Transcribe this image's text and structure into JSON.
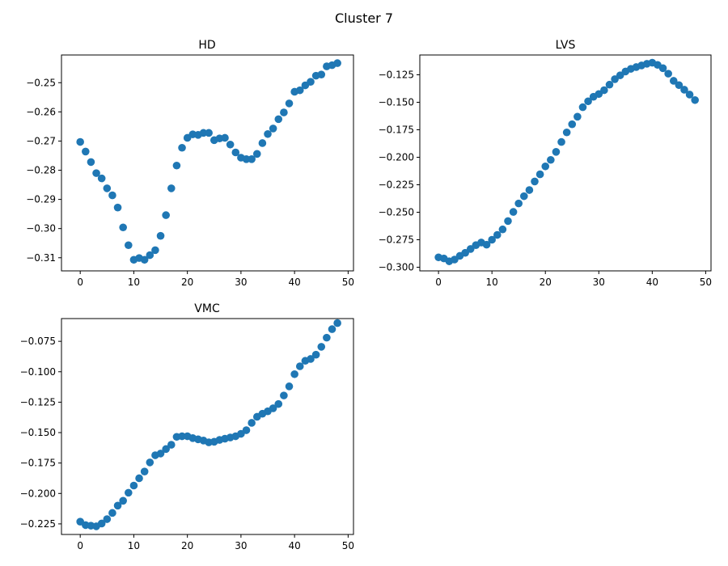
{
  "figure": {
    "title": "Cluster 7"
  },
  "chart_data": [
    {
      "type": "scatter",
      "title": "HD",
      "xlabel": "",
      "ylabel": "",
      "xlim": [
        -3.5,
        51
      ],
      "ylim": [
        -0.3145,
        -0.2405
      ],
      "xticks": [
        0,
        10,
        20,
        30,
        40,
        50
      ],
      "yticks": [
        -0.31,
        -0.3,
        -0.29,
        -0.28,
        -0.27,
        -0.26,
        -0.25
      ],
      "ytick_labels": [
        "−0.31",
        "−0.30",
        "−0.29",
        "−0.28",
        "−0.27",
        "−0.26",
        "−0.25"
      ],
      "grid": false,
      "color": "#1f77b4",
      "series": [
        {
          "x": [
            0,
            1,
            2,
            3,
            4,
            5,
            6,
            7,
            8,
            9,
            10,
            11,
            12,
            13,
            14,
            15,
            16,
            17,
            18,
            19,
            20,
            21,
            22,
            23,
            24,
            25,
            26,
            27,
            28,
            29,
            30,
            31,
            32,
            33,
            34,
            35,
            36,
            37,
            38,
            39,
            40,
            41,
            42,
            43,
            44,
            45,
            46,
            47,
            48
          ],
          "values": [
            -0.2703,
            -0.2736,
            -0.2772,
            -0.281,
            -0.2828,
            -0.2862,
            -0.2886,
            -0.2928,
            -0.2996,
            -0.3057,
            -0.3107,
            -0.3101,
            -0.3107,
            -0.3091,
            -0.3074,
            -0.3025,
            -0.2954,
            -0.2862,
            -0.2784,
            -0.2723,
            -0.2689,
            -0.2677,
            -0.2679,
            -0.2672,
            -0.2672,
            -0.2697,
            -0.2691,
            -0.2689,
            -0.2712,
            -0.2739,
            -0.2757,
            -0.2762,
            -0.2762,
            -0.2744,
            -0.2707,
            -0.2676,
            -0.2657,
            -0.2625,
            -0.2602,
            -0.2571,
            -0.2531,
            -0.2526,
            -0.2509,
            -0.2497,
            -0.2476,
            -0.2472,
            -0.2444,
            -0.244,
            -0.2433
          ]
        }
      ]
    },
    {
      "type": "scatter",
      "title": "LVS",
      "xlabel": "",
      "ylabel": "",
      "xlim": [
        -3.5,
        51
      ],
      "ylim": [
        -0.3033,
        -0.107
      ],
      "xticks": [
        0,
        10,
        20,
        30,
        40,
        50
      ],
      "yticks": [
        -0.3,
        -0.275,
        -0.25,
        -0.225,
        -0.2,
        -0.175,
        -0.15,
        -0.125
      ],
      "ytick_labels": [
        "−0.300",
        "−0.275",
        "−0.250",
        "−0.225",
        "−0.200",
        "−0.175",
        "−0.150",
        "−0.125"
      ],
      "grid": false,
      "color": "#1f77b4",
      "series": [
        {
          "x": [
            0,
            1,
            2,
            3,
            4,
            5,
            6,
            7,
            8,
            9,
            10,
            11,
            12,
            13,
            14,
            15,
            16,
            17,
            18,
            19,
            20,
            21,
            22,
            23,
            24,
            25,
            26,
            27,
            28,
            29,
            30,
            31,
            32,
            33,
            34,
            35,
            36,
            37,
            38,
            39,
            40,
            41,
            42,
            43,
            44,
            45,
            46,
            47,
            48
          ],
          "values": [
            -0.291,
            -0.292,
            -0.2946,
            -0.293,
            -0.2896,
            -0.2869,
            -0.2834,
            -0.2799,
            -0.2775,
            -0.2795,
            -0.275,
            -0.2706,
            -0.2656,
            -0.258,
            -0.2497,
            -0.242,
            -0.2354,
            -0.2298,
            -0.222,
            -0.2155,
            -0.2083,
            -0.2024,
            -0.1951,
            -0.1861,
            -0.1774,
            -0.17,
            -0.1631,
            -0.1545,
            -0.1491,
            -0.145,
            -0.1425,
            -0.139,
            -0.134,
            -0.129,
            -0.1255,
            -0.122,
            -0.1196,
            -0.118,
            -0.1165,
            -0.115,
            -0.114,
            -0.116,
            -0.119,
            -0.124,
            -0.1305,
            -0.1344,
            -0.1386,
            -0.143,
            -0.148
          ]
        }
      ]
    },
    {
      "type": "scatter",
      "title": "VMC",
      "xlabel": "",
      "ylabel": "",
      "xlim": [
        -3.5,
        51
      ],
      "ylim": [
        -0.2337,
        -0.0563
      ],
      "xticks": [
        0,
        10,
        20,
        30,
        40,
        50
      ],
      "yticks": [
        -0.225,
        -0.2,
        -0.175,
        -0.15,
        -0.125,
        -0.1,
        -0.075
      ],
      "ytick_labels": [
        "−0.225",
        "−0.200",
        "−0.175",
        "−0.150",
        "−0.125",
        "−0.100",
        "−0.075"
      ],
      "grid": false,
      "color": "#1f77b4",
      "series": [
        {
          "x": [
            0,
            1,
            2,
            3,
            4,
            5,
            6,
            7,
            8,
            9,
            10,
            11,
            12,
            13,
            14,
            15,
            16,
            17,
            18,
            19,
            20,
            21,
            22,
            23,
            24,
            25,
            26,
            27,
            28,
            29,
            30,
            31,
            32,
            33,
            34,
            35,
            36,
            37,
            38,
            39,
            40,
            41,
            42,
            43,
            44,
            45,
            46,
            47,
            48
          ],
          "values": [
            -0.2232,
            -0.226,
            -0.2265,
            -0.227,
            -0.2247,
            -0.2211,
            -0.216,
            -0.21,
            -0.206,
            -0.1994,
            -0.1935,
            -0.1875,
            -0.182,
            -0.1745,
            -0.1686,
            -0.1672,
            -0.1635,
            -0.16,
            -0.1535,
            -0.153,
            -0.153,
            -0.1545,
            -0.1555,
            -0.1565,
            -0.158,
            -0.1575,
            -0.156,
            -0.155,
            -0.154,
            -0.153,
            -0.151,
            -0.148,
            -0.142,
            -0.137,
            -0.1345,
            -0.1325,
            -0.13,
            -0.1265,
            -0.1195,
            -0.112,
            -0.102,
            -0.0955,
            -0.091,
            -0.0895,
            -0.086,
            -0.0795,
            -0.072,
            -0.065,
            -0.06
          ]
        }
      ]
    }
  ]
}
